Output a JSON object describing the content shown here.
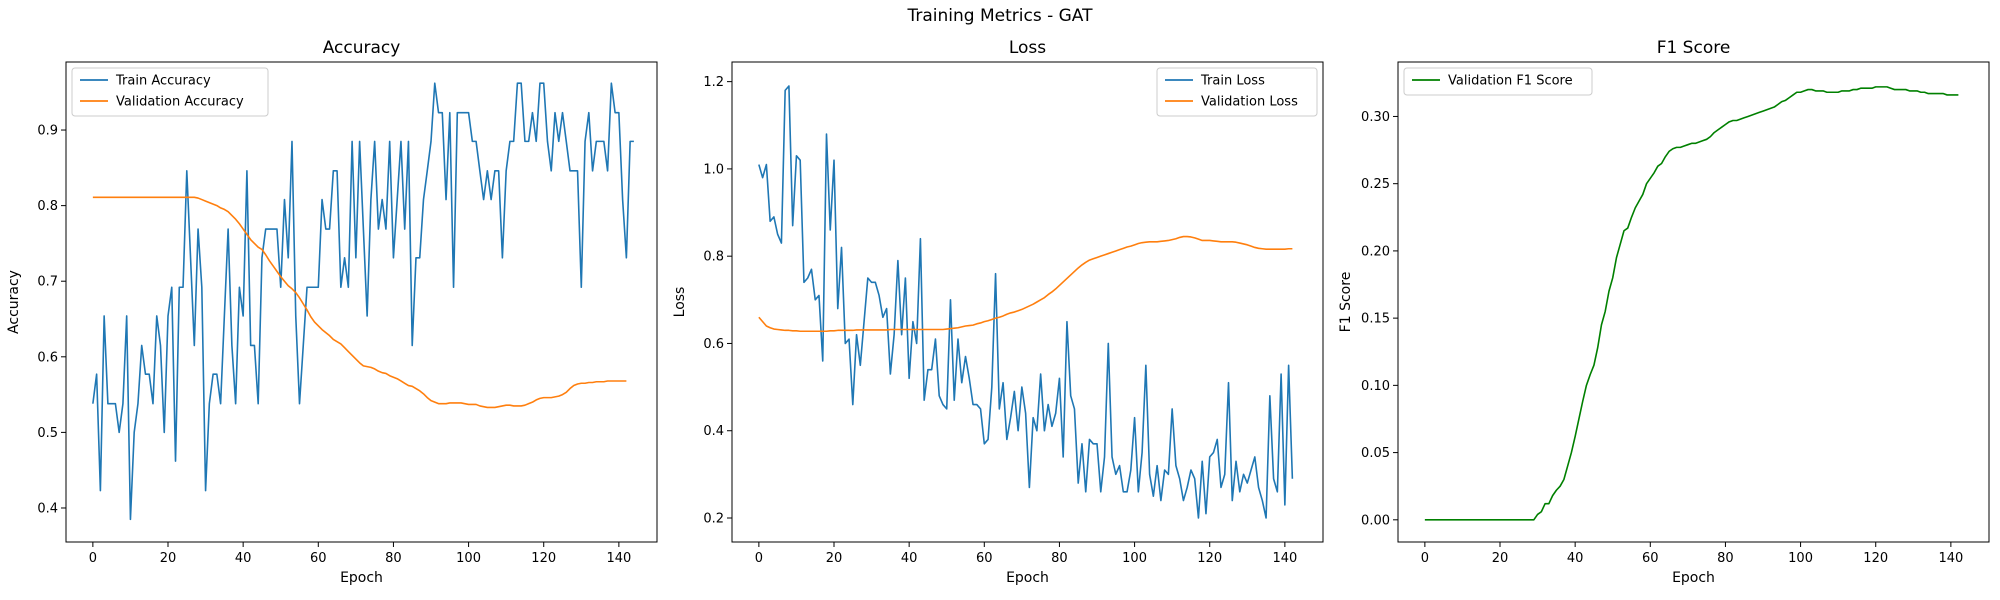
{
  "figure": {
    "suptitle": "Training Metrics - GAT"
  },
  "colors": {
    "blue": "#1f77b4",
    "orange": "#ff7f0e",
    "green": "#008000"
  },
  "chart_data": [
    {
      "type": "line",
      "title": "Accuracy",
      "xlabel": "Epoch",
      "ylabel": "Accuracy",
      "xlim": [
        -7.15,
        150.15
      ],
      "ylim": [
        0.355,
        0.99
      ],
      "xticks": [
        0,
        20,
        40,
        60,
        80,
        100,
        120,
        140
      ],
      "yticks": [
        0.4,
        0.5,
        0.6,
        0.7,
        0.8,
        0.9
      ],
      "ytick_labels": [
        "0.4",
        "0.5",
        "0.6",
        "0.7",
        "0.8",
        "0.9"
      ],
      "legend": "top-left",
      "series": [
        {
          "name": "Train Accuracy",
          "color": "#1f77b4",
          "values": [
            0.538,
            0.577,
            0.423,
            0.654,
            0.538,
            0.538,
            0.538,
            0.5,
            0.538,
            0.654,
            0.385,
            0.5,
            0.538,
            0.615,
            0.577,
            0.577,
            0.538,
            0.654,
            0.615,
            0.5,
            0.654,
            0.692,
            0.462,
            0.692,
            0.692,
            0.846,
            0.731,
            0.615,
            0.769,
            0.692,
            0.423,
            0.538,
            0.577,
            0.577,
            0.538,
            0.654,
            0.769,
            0.615,
            0.538,
            0.692,
            0.654,
            0.846,
            0.615,
            0.615,
            0.538,
            0.731,
            0.769,
            0.769,
            0.769,
            0.769,
            0.692,
            0.808,
            0.731,
            0.885,
            0.654,
            0.538,
            0.615,
            0.692,
            0.692,
            0.692,
            0.692,
            0.808,
            0.769,
            0.769,
            0.846,
            0.846,
            0.692,
            0.731,
            0.692,
            0.885,
            0.731,
            0.885,
            0.769,
            0.654,
            0.808,
            0.885,
            0.769,
            0.808,
            0.769,
            0.885,
            0.731,
            0.808,
            0.885,
            0.769,
            0.885,
            0.615,
            0.731,
            0.731,
            0.808,
            0.846,
            0.885,
            0.962,
            0.923,
            0.923,
            0.808,
            0.923,
            0.692,
            0.923,
            0.923,
            0.923,
            0.923,
            0.885,
            0.885,
            0.846,
            0.808,
            0.846,
            0.808,
            0.846,
            0.846,
            0.731,
            0.846,
            0.885,
            0.885,
            0.962,
            0.962,
            0.885,
            0.885,
            0.923,
            0.885,
            0.962,
            0.962,
            0.885,
            0.846,
            0.923,
            0.885,
            0.923,
            0.885,
            0.846,
            0.846,
            0.846,
            0.692,
            0.885,
            0.923,
            0.846,
            0.885,
            0.885,
            0.885,
            0.846,
            0.962,
            0.923,
            0.923,
            0.808,
            0.731,
            0.885,
            0.885
          ]
        },
        {
          "name": "Validation Accuracy",
          "color": "#ff7f0e",
          "values": [
            0.811,
            0.811,
            0.811,
            0.811,
            0.811,
            0.811,
            0.811,
            0.811,
            0.811,
            0.811,
            0.811,
            0.811,
            0.811,
            0.811,
            0.811,
            0.811,
            0.811,
            0.811,
            0.811,
            0.811,
            0.811,
            0.811,
            0.811,
            0.811,
            0.811,
            0.811,
            0.811,
            0.811,
            0.81,
            0.808,
            0.806,
            0.804,
            0.802,
            0.8,
            0.797,
            0.795,
            0.792,
            0.787,
            0.782,
            0.776,
            0.769,
            0.762,
            0.755,
            0.75,
            0.745,
            0.742,
            0.735,
            0.727,
            0.72,
            0.713,
            0.706,
            0.7,
            0.694,
            0.69,
            0.685,
            0.678,
            0.67,
            0.662,
            0.653,
            0.646,
            0.641,
            0.636,
            0.632,
            0.628,
            0.623,
            0.62,
            0.617,
            0.612,
            0.607,
            0.602,
            0.597,
            0.592,
            0.588,
            0.587,
            0.586,
            0.584,
            0.581,
            0.579,
            0.578,
            0.575,
            0.573,
            0.571,
            0.568,
            0.565,
            0.562,
            0.561,
            0.558,
            0.555,
            0.551,
            0.546,
            0.542,
            0.54,
            0.538,
            0.538,
            0.538,
            0.539,
            0.539,
            0.539,
            0.539,
            0.538,
            0.537,
            0.537,
            0.537,
            0.535,
            0.534,
            0.533,
            0.533,
            0.533,
            0.534,
            0.535,
            0.536,
            0.536,
            0.535,
            0.535,
            0.535,
            0.536,
            0.538,
            0.54,
            0.543,
            0.545,
            0.546,
            0.546,
            0.546,
            0.547,
            0.548,
            0.55,
            0.553,
            0.558,
            0.562,
            0.564,
            0.565,
            0.565,
            0.566,
            0.566,
            0.567,
            0.567,
            0.567,
            0.568,
            0.568,
            0.568,
            0.568,
            0.568,
            0.568
          ]
        }
      ]
    },
    {
      "type": "line",
      "title": "Loss",
      "xlabel": "Epoch",
      "ylabel": "Loss",
      "xlim": [
        -7.15,
        150.15
      ],
      "ylim": [
        0.145,
        1.245
      ],
      "xticks": [
        0,
        20,
        40,
        60,
        80,
        100,
        120,
        140
      ],
      "yticks": [
        0.2,
        0.4,
        0.6,
        0.8,
        1.0,
        1.2
      ],
      "ytick_labels": [
        "0.2",
        "0.4",
        "0.6",
        "0.8",
        "1.0",
        "1.2"
      ],
      "legend": "top-right",
      "series": [
        {
          "name": "Train Loss",
          "color": "#1f77b4",
          "values": [
            1.01,
            0.98,
            1.01,
            0.88,
            0.89,
            0.85,
            0.83,
            1.18,
            1.19,
            0.87,
            1.03,
            1.02,
            0.74,
            0.75,
            0.77,
            0.7,
            0.71,
            0.56,
            1.08,
            0.86,
            1.02,
            0.68,
            0.82,
            0.6,
            0.61,
            0.46,
            0.62,
            0.55,
            0.65,
            0.75,
            0.74,
            0.74,
            0.71,
            0.66,
            0.68,
            0.53,
            0.62,
            0.79,
            0.62,
            0.75,
            0.52,
            0.65,
            0.6,
            0.84,
            0.47,
            0.54,
            0.54,
            0.61,
            0.48,
            0.46,
            0.45,
            0.7,
            0.47,
            0.61,
            0.51,
            0.57,
            0.52,
            0.46,
            0.46,
            0.45,
            0.37,
            0.38,
            0.5,
            0.76,
            0.45,
            0.51,
            0.38,
            0.43,
            0.49,
            0.4,
            0.5,
            0.44,
            0.27,
            0.43,
            0.4,
            0.53,
            0.4,
            0.46,
            0.41,
            0.44,
            0.52,
            0.34,
            0.65,
            0.48,
            0.45,
            0.28,
            0.37,
            0.26,
            0.38,
            0.37,
            0.37,
            0.26,
            0.34,
            0.6,
            0.34,
            0.3,
            0.32,
            0.26,
            0.26,
            0.31,
            0.43,
            0.26,
            0.35,
            0.55,
            0.3,
            0.25,
            0.32,
            0.24,
            0.31,
            0.3,
            0.45,
            0.32,
            0.29,
            0.24,
            0.27,
            0.31,
            0.29,
            0.2,
            0.33,
            0.21,
            0.34,
            0.35,
            0.38,
            0.27,
            0.3,
            0.51,
            0.24,
            0.33,
            0.26,
            0.3,
            0.28,
            0.31,
            0.34,
            0.27,
            0.24,
            0.2,
            0.48,
            0.29,
            0.26,
            0.53,
            0.23,
            0.55,
            0.29
          ]
        },
        {
          "name": "Validation Loss",
          "color": "#ff7f0e",
          "values": [
            0.66,
            0.65,
            0.64,
            0.636,
            0.633,
            0.632,
            0.631,
            0.63,
            0.63,
            0.629,
            0.629,
            0.628,
            0.628,
            0.628,
            0.628,
            0.628,
            0.628,
            0.628,
            0.628,
            0.629,
            0.629,
            0.63,
            0.63,
            0.63,
            0.63,
            0.63,
            0.631,
            0.631,
            0.631,
            0.631,
            0.631,
            0.631,
            0.631,
            0.631,
            0.631,
            0.632,
            0.632,
            0.632,
            0.632,
            0.632,
            0.632,
            0.632,
            0.632,
            0.632,
            0.632,
            0.632,
            0.632,
            0.632,
            0.632,
            0.632,
            0.633,
            0.634,
            0.635,
            0.636,
            0.638,
            0.64,
            0.641,
            0.642,
            0.645,
            0.647,
            0.65,
            0.652,
            0.655,
            0.658,
            0.66,
            0.663,
            0.667,
            0.67,
            0.672,
            0.675,
            0.678,
            0.682,
            0.686,
            0.69,
            0.695,
            0.7,
            0.705,
            0.712,
            0.718,
            0.725,
            0.733,
            0.741,
            0.749,
            0.757,
            0.765,
            0.773,
            0.78,
            0.786,
            0.791,
            0.794,
            0.797,
            0.8,
            0.803,
            0.806,
            0.809,
            0.812,
            0.815,
            0.818,
            0.821,
            0.823,
            0.826,
            0.829,
            0.831,
            0.832,
            0.833,
            0.833,
            0.833,
            0.834,
            0.835,
            0.836,
            0.838,
            0.84,
            0.843,
            0.845,
            0.845,
            0.844,
            0.842,
            0.839,
            0.836,
            0.836,
            0.836,
            0.835,
            0.834,
            0.833,
            0.833,
            0.833,
            0.833,
            0.832,
            0.83,
            0.828,
            0.826,
            0.823,
            0.82,
            0.818,
            0.817,
            0.816,
            0.816,
            0.816,
            0.816,
            0.816,
            0.816,
            0.817,
            0.817
          ]
        }
      ]
    },
    {
      "type": "line",
      "title": "F1 Score",
      "xlabel": "Epoch",
      "ylabel": "F1 Score",
      "xlim": [
        -7.15,
        150.15
      ],
      "ylim": [
        -0.0165,
        0.3405
      ],
      "xticks": [
        0,
        20,
        40,
        60,
        80,
        100,
        120,
        140
      ],
      "yticks": [
        0.0,
        0.05,
        0.1,
        0.15,
        0.2,
        0.25,
        0.3
      ],
      "ytick_labels": [
        "0.00",
        "0.05",
        "0.10",
        "0.15",
        "0.20",
        "0.25",
        "0.30"
      ],
      "legend": "top-left",
      "series": [
        {
          "name": "Validation F1 Score",
          "color": "#008000",
          "values": [
            0,
            0,
            0,
            0,
            0,
            0,
            0,
            0,
            0,
            0,
            0,
            0,
            0,
            0,
            0,
            0,
            0,
            0,
            0,
            0,
            0,
            0,
            0,
            0,
            0,
            0,
            0,
            0,
            0,
            0,
            0.004,
            0.006,
            0.012,
            0.012,
            0.018,
            0.022,
            0.025,
            0.03,
            0.04,
            0.05,
            0.062,
            0.075,
            0.088,
            0.1,
            0.108,
            0.115,
            0.128,
            0.145,
            0.155,
            0.17,
            0.18,
            0.195,
            0.205,
            0.215,
            0.217,
            0.225,
            0.232,
            0.237,
            0.242,
            0.25,
            0.254,
            0.258,
            0.263,
            0.265,
            0.27,
            0.274,
            0.276,
            0.277,
            0.277,
            0.278,
            0.279,
            0.28,
            0.28,
            0.281,
            0.282,
            0.283,
            0.285,
            0.288,
            0.29,
            0.292,
            0.294,
            0.296,
            0.297,
            0.297,
            0.298,
            0.299,
            0.3,
            0.301,
            0.302,
            0.303,
            0.304,
            0.305,
            0.306,
            0.307,
            0.309,
            0.311,
            0.312,
            0.314,
            0.316,
            0.318,
            0.318,
            0.319,
            0.32,
            0.32,
            0.319,
            0.319,
            0.319,
            0.318,
            0.318,
            0.318,
            0.318,
            0.319,
            0.319,
            0.319,
            0.32,
            0.32,
            0.321,
            0.321,
            0.321,
            0.321,
            0.322,
            0.322,
            0.322,
            0.322,
            0.321,
            0.32,
            0.32,
            0.32,
            0.32,
            0.319,
            0.319,
            0.319,
            0.318,
            0.318,
            0.317,
            0.317,
            0.317,
            0.317,
            0.317,
            0.316,
            0.316,
            0.316,
            0.316
          ]
        }
      ]
    }
  ]
}
